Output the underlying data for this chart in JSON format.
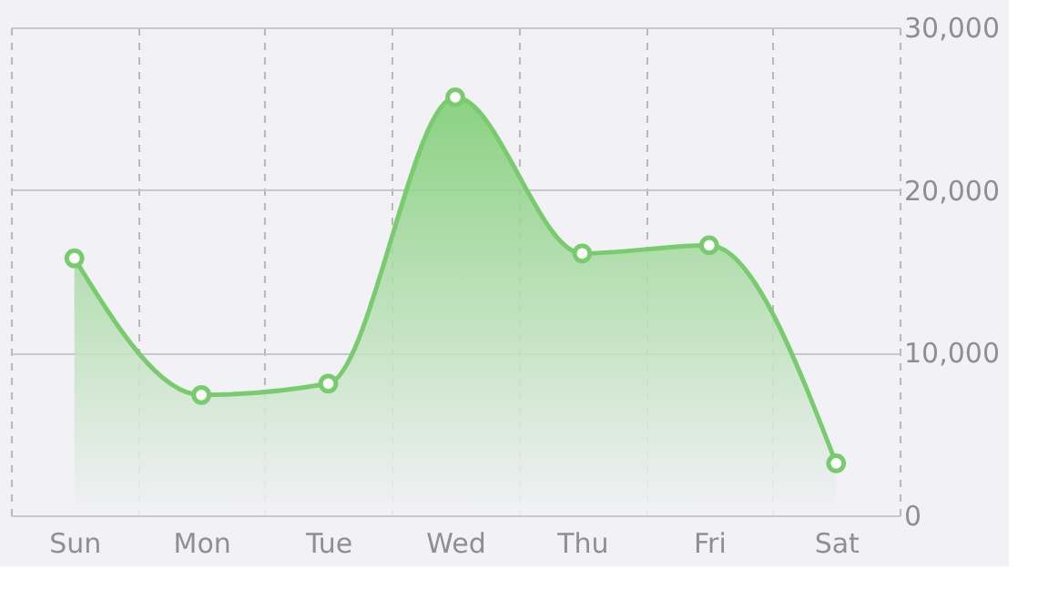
{
  "chart_data": {
    "type": "area",
    "categories": [
      "Sun",
      "Mon",
      "Tue",
      "Wed",
      "Thu",
      "Fri",
      "Sat"
    ],
    "series": [
      {
        "color": "#79cc6e",
        "values": [
          15800,
          7400,
          8100,
          25700,
          16100,
          16600,
          3200
        ]
      }
    ],
    "ylim": [
      0,
      30000
    ],
    "yticks": [
      0,
      {
        "value": 10000,
        "label": "10,000"
      },
      {
        "value": 20000,
        "label": "20,000"
      },
      {
        "value": 30000,
        "label": "30,000"
      }
    ],
    "grid": true,
    "marker": "circle",
    "line_style": "solid"
  }
}
